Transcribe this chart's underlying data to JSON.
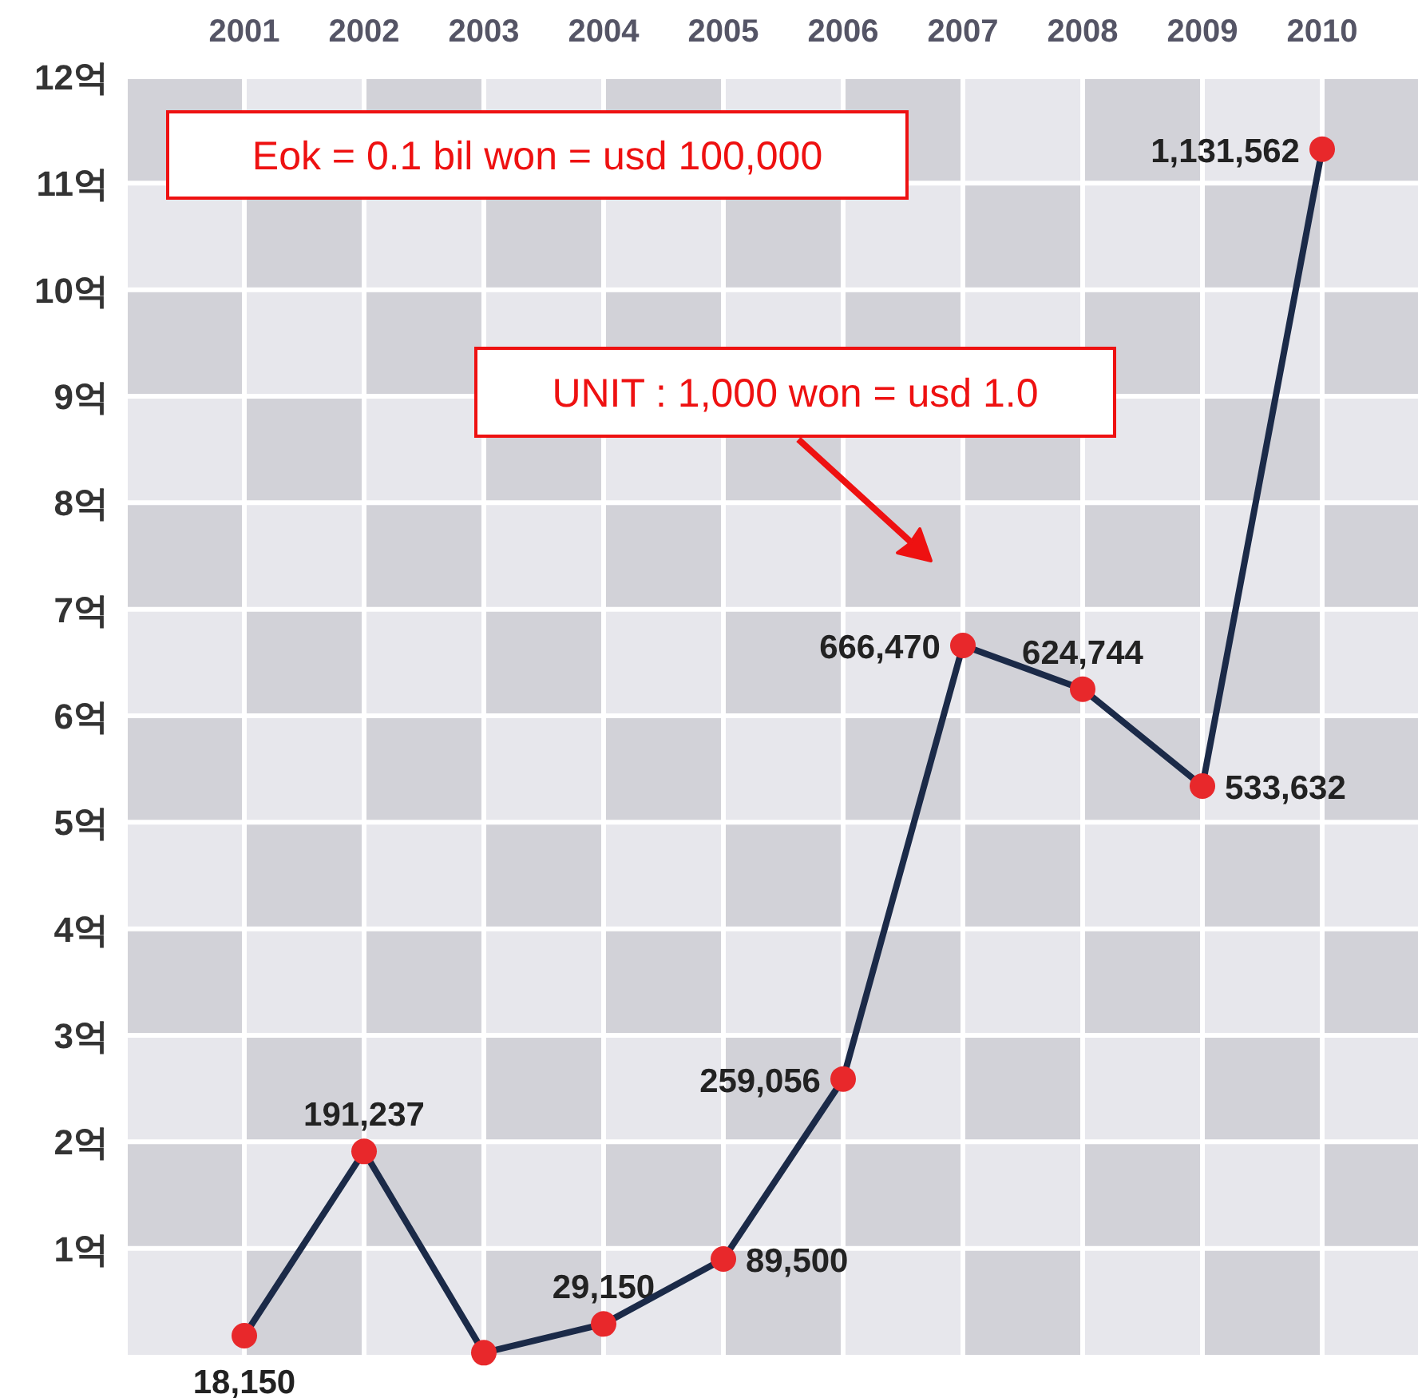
{
  "chart_data": {
    "type": "line",
    "categories": [
      "2001",
      "2002",
      "2003",
      "2004",
      "2005",
      "2006",
      "2007",
      "2008",
      "2009",
      "2010"
    ],
    "series": [
      {
        "color": "#1b2a48",
        "values": [
          0.18,
          1.91,
          0.02,
          0.29,
          0.9,
          2.59,
          6.66,
          6.25,
          5.34,
          11.32
        ]
      }
    ],
    "marker": "circle",
    "line_style": "solid",
    "grid": true,
    "ylim": [
      0,
      12
    ],
    "yticks": [
      {
        "value": 1,
        "label": "1억"
      },
      {
        "value": 2,
        "label": "2억"
      },
      {
        "value": 3,
        "label": "3억"
      },
      {
        "value": 4,
        "label": "4억"
      },
      {
        "value": 5,
        "label": "5억"
      },
      {
        "value": 6,
        "label": "6억"
      },
      {
        "value": 7,
        "label": "7억"
      },
      {
        "value": 8,
        "label": "8억"
      },
      {
        "value": 9,
        "label": "9억"
      },
      {
        "value": 10,
        "label": "10억"
      },
      {
        "value": 11,
        "label": "11억"
      },
      {
        "value": 12,
        "label": "12억"
      }
    ],
    "annotations": [
      "Eok = 0.1 bil won = usd 100,000",
      "UNIT : 1,000 won = usd 1.0",
      {
        "text": "18,150",
        "x": "2001",
        "y": 0.18
      },
      {
        "text": "191,237",
        "x": "2002",
        "y": 1.91
      },
      {
        "text": "29,150",
        "x": "2004",
        "y": 0.29
      },
      {
        "text": "89,500",
        "x": "2005",
        "y": 0.9
      },
      {
        "text": "259,056",
        "x": "2006",
        "y": 2.59
      },
      {
        "text": "666,470",
        "x": "2007",
        "y": 6.66
      },
      {
        "text": "624,744",
        "x": "2008",
        "y": 6.25
      },
      {
        "text": "533,632",
        "x": "2009",
        "y": 5.34
      },
      {
        "text": "1,131,562",
        "x": "2010",
        "y": 11.32
      }
    ]
  }
}
